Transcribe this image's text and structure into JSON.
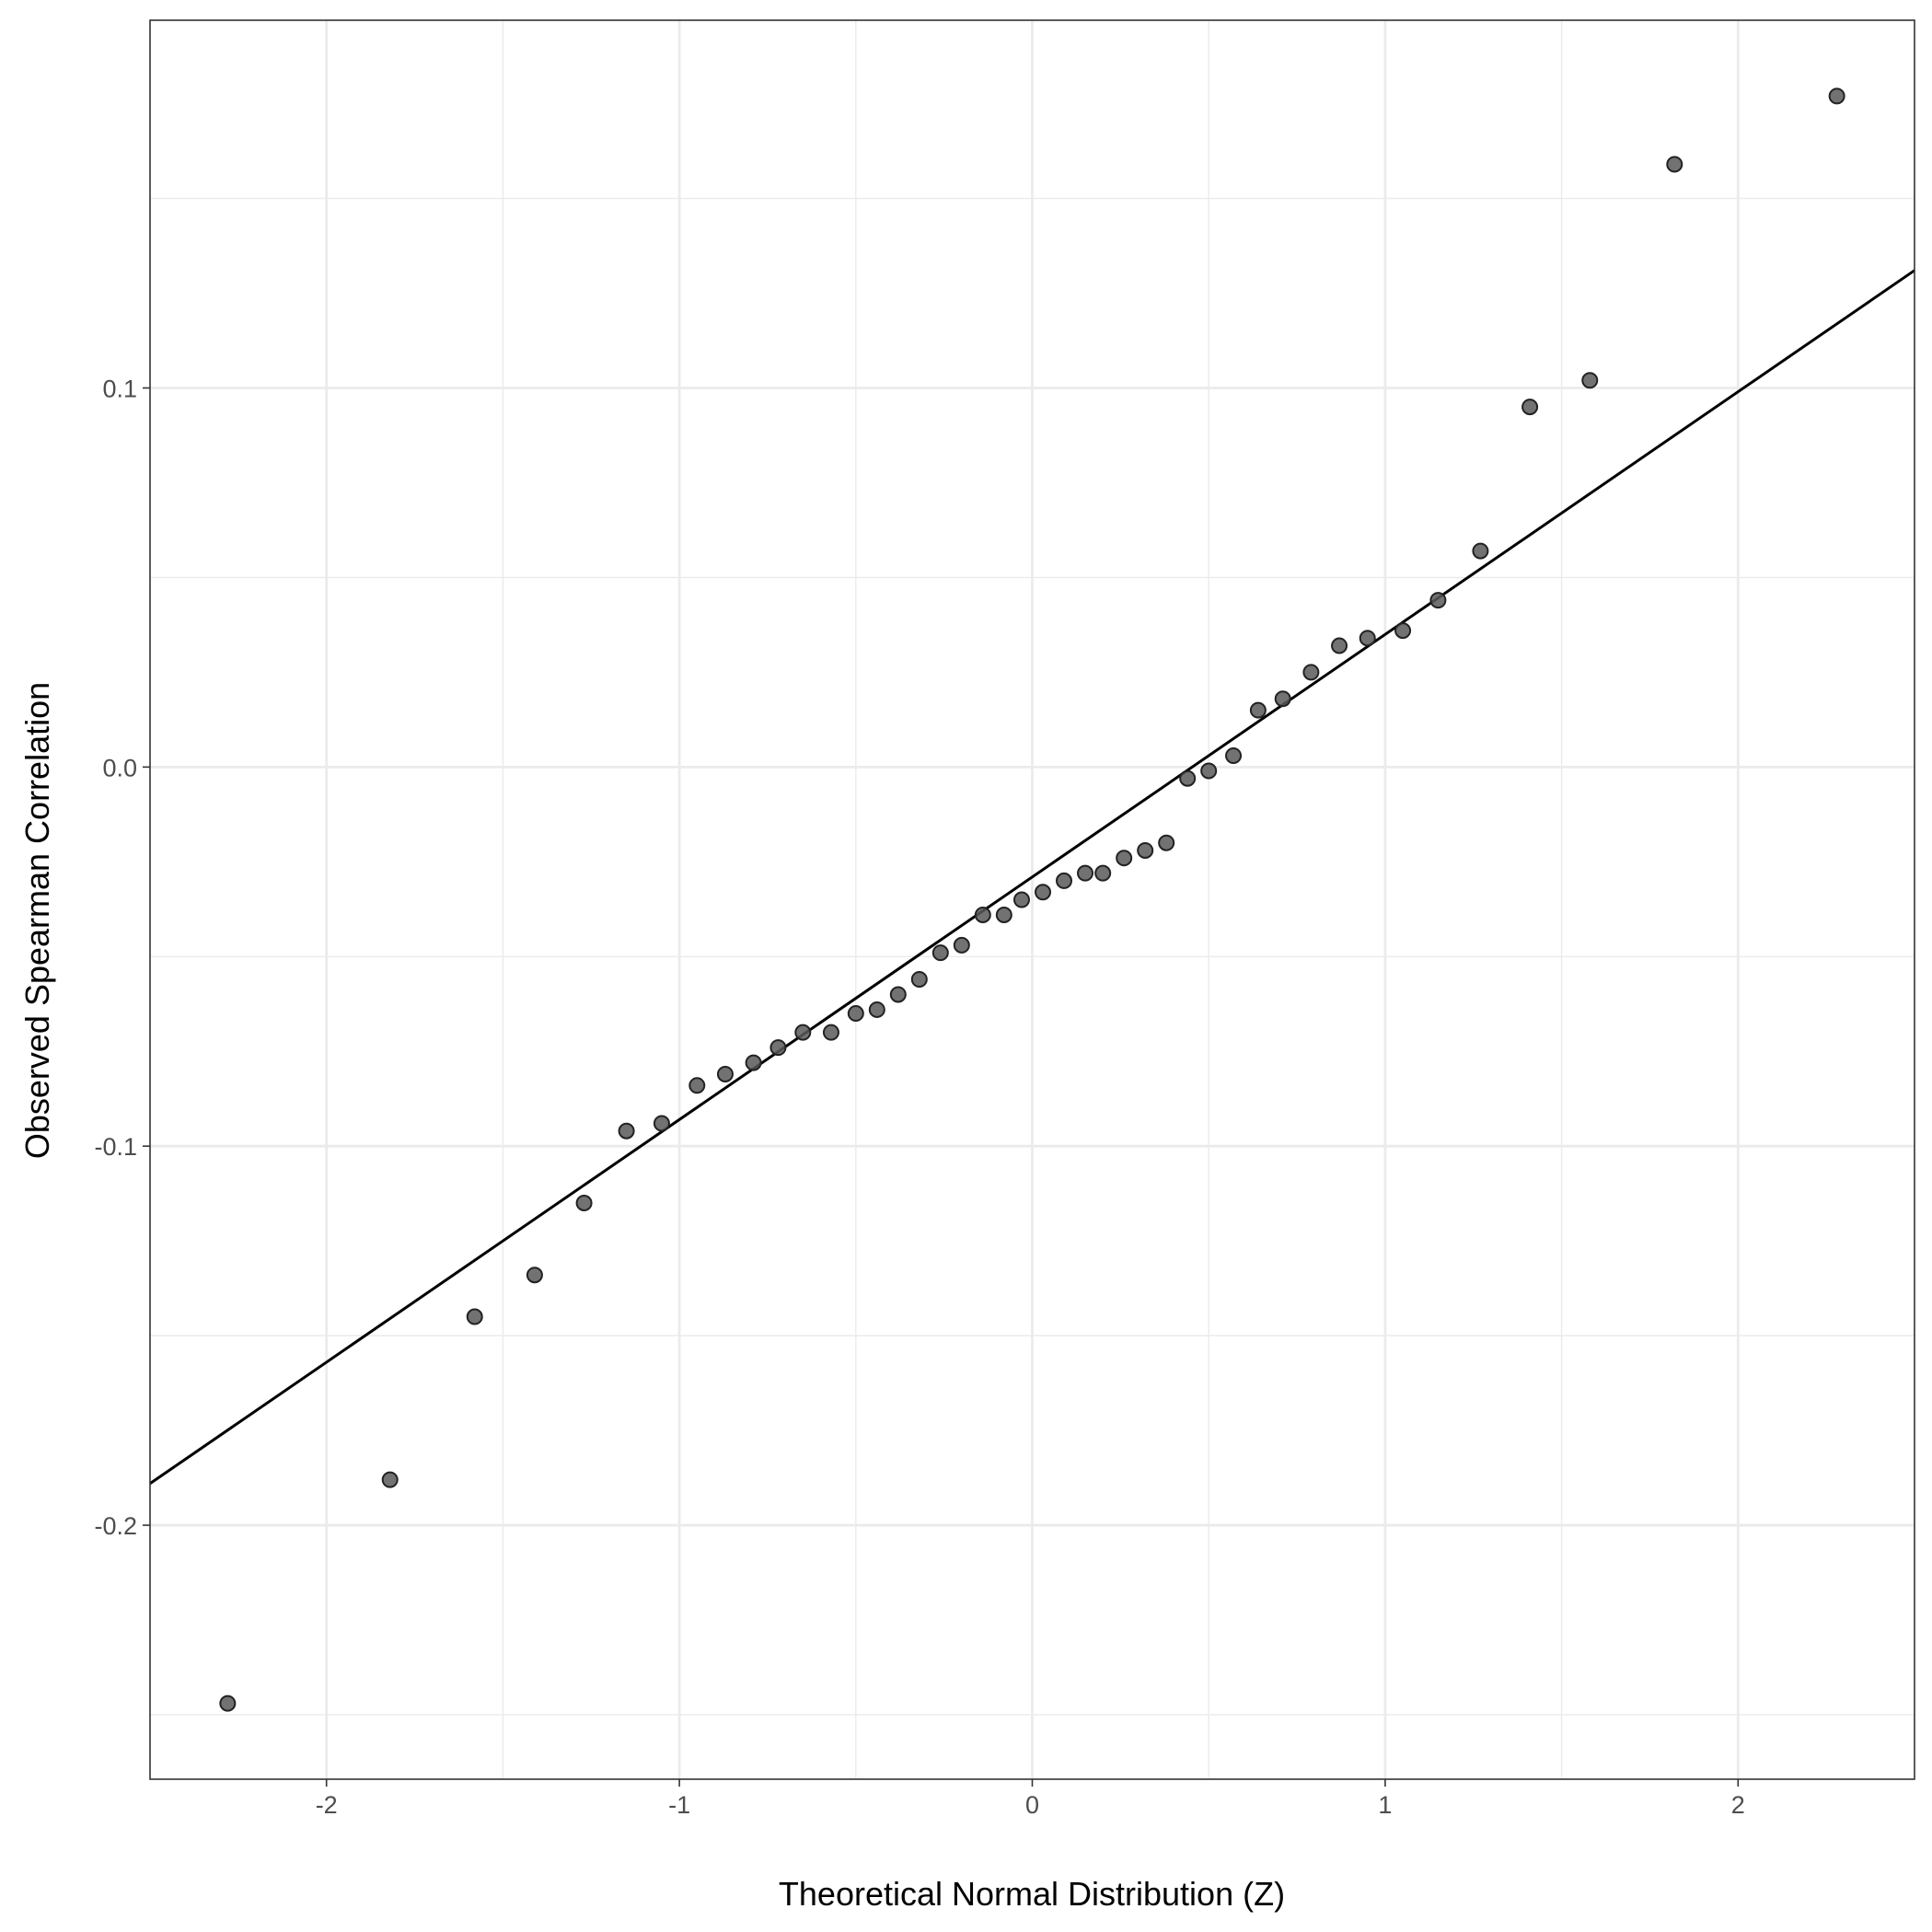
{
  "chart_data": {
    "type": "scatter",
    "subtype": "qq-plot",
    "title": "",
    "xlabel": "Theoretical Normal Distribution (Z)",
    "ylabel": "Observed Spearman Correlation",
    "xlim": [
      -2.5,
      2.5
    ],
    "ylim": [
      -0.267,
      0.197
    ],
    "x_ticks": [
      -2,
      -1,
      0,
      1,
      2
    ],
    "x_tick_labels": [
      "-2",
      "-1",
      "0",
      "1",
      "2"
    ],
    "y_ticks": [
      -0.2,
      -0.1,
      0.0,
      0.1
    ],
    "y_tick_labels": [
      "-0.2",
      "-0.1",
      "0.0",
      "0.1"
    ],
    "grid": true,
    "point_color": "#595959",
    "line_color": "#000000",
    "reference_line": {
      "intercept": -0.029,
      "slope": 0.064
    },
    "points": [
      {
        "x": -2.28,
        "y": -0.247
      },
      {
        "x": -1.82,
        "y": -0.188
      },
      {
        "x": -1.58,
        "y": -0.145
      },
      {
        "x": -1.41,
        "y": -0.134
      },
      {
        "x": -1.27,
        "y": -0.115
      },
      {
        "x": -1.15,
        "y": -0.096
      },
      {
        "x": -1.05,
        "y": -0.094
      },
      {
        "x": -0.95,
        "y": -0.084
      },
      {
        "x": -0.87,
        "y": -0.081
      },
      {
        "x": -0.79,
        "y": -0.078
      },
      {
        "x": -0.72,
        "y": -0.074
      },
      {
        "x": -0.65,
        "y": -0.07
      },
      {
        "x": -0.57,
        "y": -0.07
      },
      {
        "x": -0.5,
        "y": -0.065
      },
      {
        "x": -0.44,
        "y": -0.064
      },
      {
        "x": -0.38,
        "y": -0.06
      },
      {
        "x": -0.32,
        "y": -0.056
      },
      {
        "x": -0.26,
        "y": -0.049
      },
      {
        "x": -0.2,
        "y": -0.047
      },
      {
        "x": -0.14,
        "y": -0.039
      },
      {
        "x": -0.08,
        "y": -0.039
      },
      {
        "x": -0.03,
        "y": -0.035
      },
      {
        "x": 0.03,
        "y": -0.033
      },
      {
        "x": 0.09,
        "y": -0.03
      },
      {
        "x": 0.15,
        "y": -0.028
      },
      {
        "x": 0.2,
        "y": -0.028
      },
      {
        "x": 0.26,
        "y": -0.024
      },
      {
        "x": 0.32,
        "y": -0.022
      },
      {
        "x": 0.38,
        "y": -0.02
      },
      {
        "x": 0.44,
        "y": -0.003
      },
      {
        "x": 0.5,
        "y": -0.001
      },
      {
        "x": 0.57,
        "y": 0.003
      },
      {
        "x": 0.64,
        "y": 0.015
      },
      {
        "x": 0.71,
        "y": 0.018
      },
      {
        "x": 0.79,
        "y": 0.025
      },
      {
        "x": 0.87,
        "y": 0.032
      },
      {
        "x": 0.95,
        "y": 0.034
      },
      {
        "x": 1.05,
        "y": 0.036
      },
      {
        "x": 1.15,
        "y": 0.044
      },
      {
        "x": 1.27,
        "y": 0.057
      },
      {
        "x": 1.41,
        "y": 0.095
      },
      {
        "x": 1.58,
        "y": 0.102
      },
      {
        "x": 1.82,
        "y": 0.159
      },
      {
        "x": 2.28,
        "y": 0.177
      }
    ]
  }
}
